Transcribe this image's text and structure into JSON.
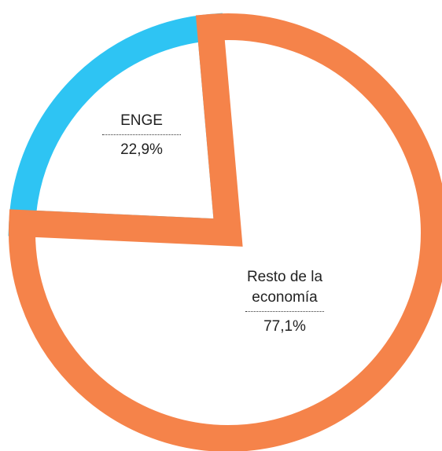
{
  "chart_data": {
    "type": "pie",
    "categories": [
      "ENGE",
      "Resto de la economía"
    ],
    "values": [
      22.9,
      77.1
    ],
    "value_labels": [
      "22,9%",
      "77,1%"
    ],
    "colors": [
      "#2ec4f3",
      "#f5834a"
    ]
  }
}
